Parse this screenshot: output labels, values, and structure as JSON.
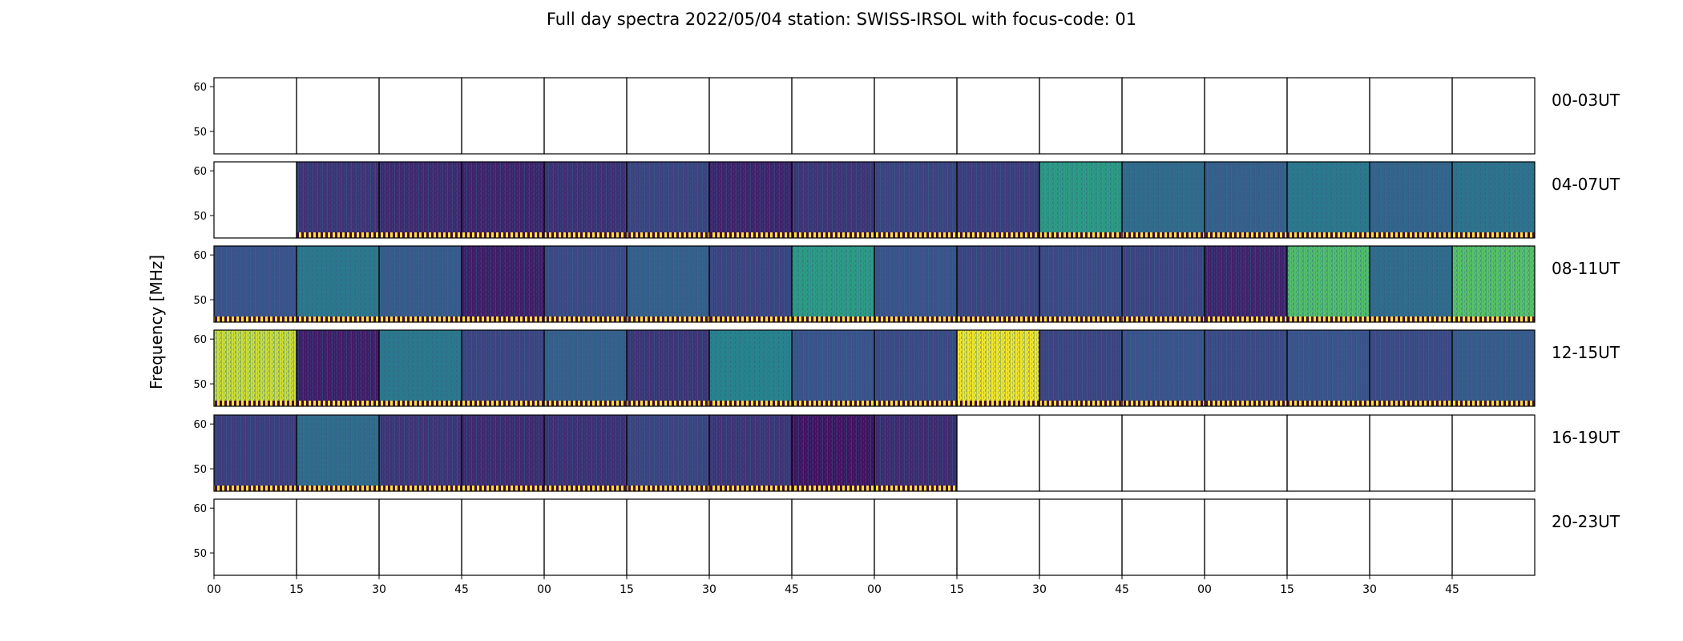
{
  "chart_data": {
    "type": "heatmap",
    "title": "Full day spectra 2022/05/04 station: SWISS-IRSOL with focus-code: 01",
    "ylabel": "Frequency [MHz]",
    "xlabel": "",
    "yticks": [
      60,
      50
    ],
    "ylim": [
      45,
      62
    ],
    "xticks": [
      "00",
      "15",
      "30",
      "45",
      "00",
      "15",
      "30",
      "45",
      "00",
      "15",
      "30",
      "45",
      "00",
      "15",
      "30",
      "45"
    ],
    "colormap": "viridis",
    "colors": {
      "low": "#440154",
      "mid": "#2a788e",
      "high": "#21918c",
      "peak": "#fde725"
    },
    "row_labels": [
      "00-03UT",
      "04-07UT",
      "08-11UT",
      "12-15UT",
      "16-19UT",
      "20-23UT"
    ],
    "panel_minutes": 15,
    "panels_per_row": 16,
    "intensity": [
      [
        0,
        0,
        0,
        0,
        0,
        0,
        0,
        0,
        0,
        0,
        0,
        0,
        0,
        0,
        0,
        0
      ],
      [
        0,
        0.15,
        0.12,
        0.1,
        0.14,
        0.2,
        0.1,
        0.15,
        0.2,
        0.18,
        0.55,
        0.35,
        0.3,
        0.4,
        0.32,
        0.38
      ],
      [
        0.25,
        0.4,
        0.28,
        0.08,
        0.22,
        0.3,
        0.2,
        0.55,
        0.25,
        0.2,
        0.22,
        0.2,
        0.1,
        0.7,
        0.35,
        0.72
      ],
      [
        0.92,
        0.08,
        0.4,
        0.2,
        0.3,
        0.15,
        0.45,
        0.25,
        0.22,
        0.98,
        0.2,
        0.25,
        0.22,
        0.25,
        0.22,
        0.28
      ],
      [
        0.18,
        0.35,
        0.15,
        0.12,
        0.14,
        0.2,
        0.15,
        0.05,
        0.12,
        0,
        0,
        0,
        0,
        0,
        0,
        0
      ],
      [
        0,
        0,
        0,
        0,
        0,
        0,
        0,
        0,
        0,
        0,
        0,
        0,
        0,
        0,
        0,
        0
      ]
    ],
    "calibration_marker_rows": [
      1,
      2,
      3,
      4
    ]
  }
}
